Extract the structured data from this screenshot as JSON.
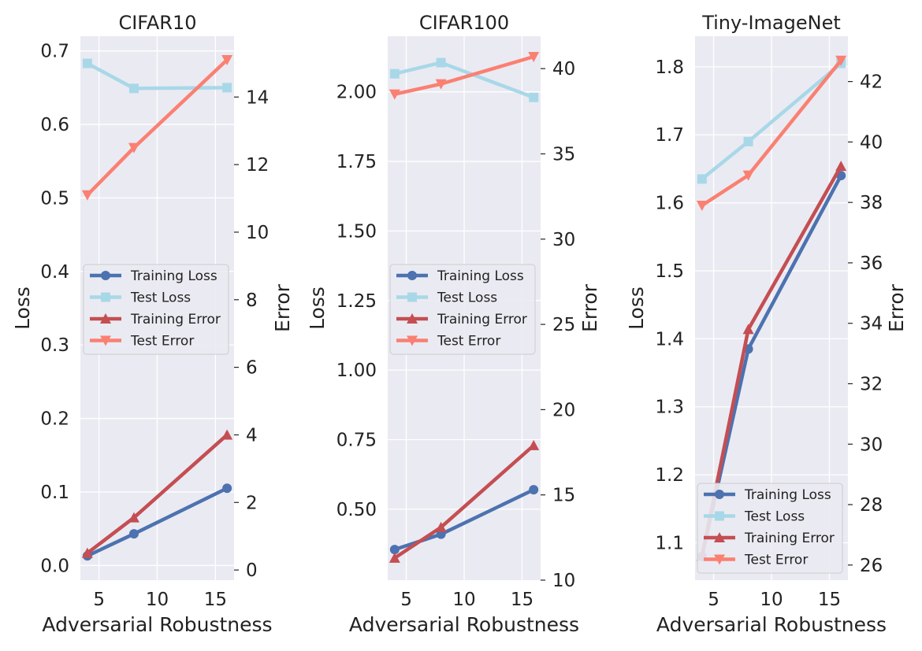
{
  "colors": {
    "training_loss": "#4c72b0",
    "test_loss": "#a8d8e8",
    "training_error": "#c44e52",
    "test_error": "#fa8072",
    "plot_bg": "#eaeaf2",
    "grid": "#ffffff"
  },
  "chart_data": [
    {
      "type": "line",
      "title": "CIFAR10",
      "xlabel": "Adversarial Robustness",
      "ylabel_left": "Loss",
      "ylabel_right": "Error",
      "xlim": [
        3.4,
        16.6
      ],
      "xticks": [
        5,
        10,
        15
      ],
      "ylim_left": [
        -0.02,
        0.72
      ],
      "yticks_left": [
        0.0,
        0.1,
        0.2,
        0.3,
        0.4,
        0.5,
        0.6,
        0.7
      ],
      "ylim_right": [
        -0.3,
        15.8
      ],
      "yticks_right": [
        0,
        2,
        4,
        6,
        8,
        10,
        12,
        14
      ],
      "legend_location": "center-left",
      "x": [
        4,
        8,
        16
      ],
      "series": [
        {
          "name": "Training Loss",
          "axis": "left",
          "marker": "circle",
          "values": [
            0.013,
            0.043,
            0.105
          ]
        },
        {
          "name": "Test Loss",
          "axis": "left",
          "marker": "square",
          "values": [
            0.683,
            0.649,
            0.65
          ]
        },
        {
          "name": "Training Error",
          "axis": "right",
          "marker": "triangle-up",
          "values": [
            0.5,
            1.55,
            4.0
          ]
        },
        {
          "name": "Test Error",
          "axis": "right",
          "marker": "triangle-down",
          "values": [
            11.1,
            12.5,
            15.1
          ]
        }
      ]
    },
    {
      "type": "line",
      "title": "CIFAR100",
      "xlabel": "Adversarial Robustness",
      "ylabel_left": "Loss",
      "ylabel_right": "Error",
      "xlim": [
        3.4,
        16.6
      ],
      "xticks": [
        5,
        10,
        15
      ],
      "ylim_left": [
        0.245,
        2.2
      ],
      "yticks_left": [
        0.5,
        0.75,
        1.0,
        1.25,
        1.5,
        1.75,
        2.0
      ],
      "ylim_right": [
        10.0,
        41.9
      ],
      "yticks_right": [
        10,
        15,
        20,
        25,
        30,
        35,
        40
      ],
      "legend_location": "center-left",
      "x": [
        4,
        8,
        16
      ],
      "series": [
        {
          "name": "Training Loss",
          "axis": "left",
          "marker": "circle",
          "values": [
            0.355,
            0.41,
            0.57
          ]
        },
        {
          "name": "Test Loss",
          "axis": "left",
          "marker": "square",
          "values": [
            2.065,
            2.105,
            1.98
          ]
        },
        {
          "name": "Training Error",
          "axis": "right",
          "marker": "triangle-up",
          "values": [
            11.3,
            13.1,
            17.9
          ]
        },
        {
          "name": "Test Error",
          "axis": "right",
          "marker": "triangle-down",
          "values": [
            38.5,
            39.1,
            40.7
          ]
        }
      ]
    },
    {
      "type": "line",
      "title": "Tiny-ImageNet",
      "xlabel": "Adversarial Robustness",
      "ylabel_left": "Loss",
      "ylabel_right": "Error",
      "xlim": [
        3.4,
        16.6
      ],
      "xticks": [
        5,
        10,
        15
      ],
      "ylim_left": [
        1.045,
        1.845
      ],
      "yticks_left": [
        1.1,
        1.2,
        1.3,
        1.4,
        1.5,
        1.6,
        1.7,
        1.8
      ],
      "ylim_right": [
        25.5,
        43.5
      ],
      "yticks_right": [
        26,
        28,
        30,
        32,
        34,
        36,
        38,
        40,
        42
      ],
      "legend_location": "lower-right",
      "x": [
        4,
        8,
        16
      ],
      "series": [
        {
          "name": "Training Loss",
          "axis": "left",
          "marker": "circle",
          "values": [
            1.08,
            1.385,
            1.64
          ]
        },
        {
          "name": "Test Loss",
          "axis": "left",
          "marker": "square",
          "values": [
            1.635,
            1.69,
            1.805
          ]
        },
        {
          "name": "Training Error",
          "axis": "right",
          "marker": "triangle-up",
          "values": [
            26.3,
            33.8,
            39.2
          ]
        },
        {
          "name": "Test Error",
          "axis": "right",
          "marker": "triangle-down",
          "values": [
            37.9,
            38.9,
            42.7
          ]
        }
      ]
    }
  ]
}
